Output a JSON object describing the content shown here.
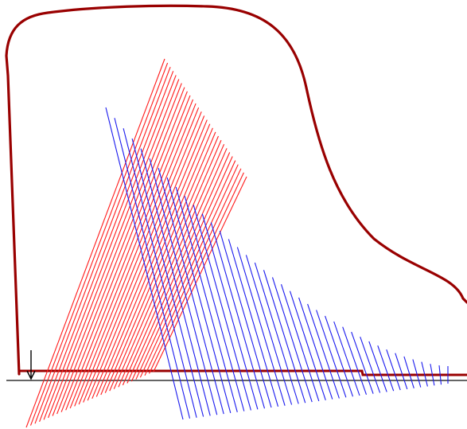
{
  "diagram": {
    "colors": {
      "outline": "#990000",
      "bass_strings": "#ff1a1a",
      "treble_strings": "#1a1aee",
      "baseline": "#333333",
      "arrow": "#000000",
      "background": "#ffffff"
    },
    "string_groups": {
      "bass_red_count": 30,
      "treble_blue_count": 40
    },
    "icons": [
      "down-arrow-icon"
    ]
  }
}
